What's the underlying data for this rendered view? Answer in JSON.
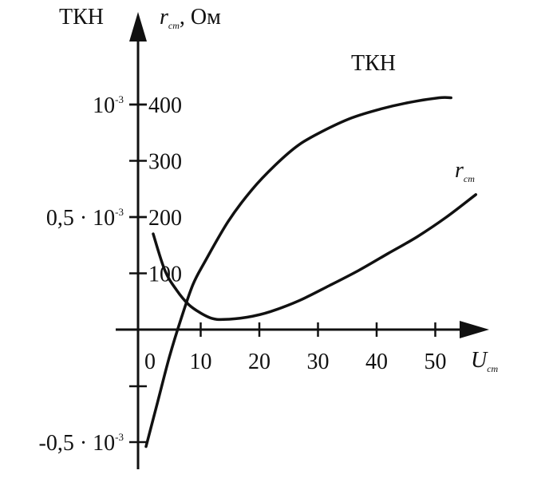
{
  "chart_data": {
    "type": "line",
    "x_axis": {
      "label": "U",
      "label_subscript": "ст",
      "ticks": [
        0,
        10,
        20,
        30,
        40,
        50
      ],
      "tick_labels": [
        "0",
        "10",
        "20",
        "30",
        "40",
        "50"
      ],
      "range": [
        0,
        55
      ]
    },
    "y_axis_right": {
      "label": "r",
      "label_subscript": "ст",
      "label_suffix": ", Ом",
      "ticks": [
        100,
        200,
        300,
        400
      ],
      "tick_labels": [
        "100",
        "200",
        "300",
        "400"
      ]
    },
    "y_axis_left": {
      "label": "ТКН",
      "ticks": [
        0.001,
        0.0005,
        -0.0005
      ],
      "tick_labels": [
        {
          "base": "10",
          "exp": "-3"
        },
        {
          "base": "0,5 · 10",
          "exp": "-3"
        },
        {
          "base": "-0,5 · 10",
          "exp": "-3"
        }
      ]
    },
    "series": [
      {
        "name": "ТКН",
        "axis": "left",
        "x": [
          0,
          2,
          4,
          6,
          8,
          10,
          14,
          18,
          22,
          26,
          30,
          35,
          40,
          45,
          50,
          52
        ],
        "y": [
          -0.00052,
          -0.00032,
          -0.00012,
          5e-05,
          0.0002,
          0.0003,
          0.00048,
          0.00062,
          0.00073,
          0.00082,
          0.00088,
          0.00094,
          0.00098,
          0.00101,
          0.00103,
          0.00103
        ]
      },
      {
        "name": "r",
        "name_subscript": "ст",
        "axis": "right",
        "x": [
          0,
          2,
          4,
          6,
          8,
          10,
          12,
          16,
          20,
          25,
          30,
          35,
          40,
          45,
          50,
          55
        ],
        "y": [
          170,
          105,
          70,
          45,
          30,
          20,
          18,
          22,
          32,
          52,
          78,
          105,
          135,
          165,
          200,
          240
        ]
      }
    ]
  }
}
